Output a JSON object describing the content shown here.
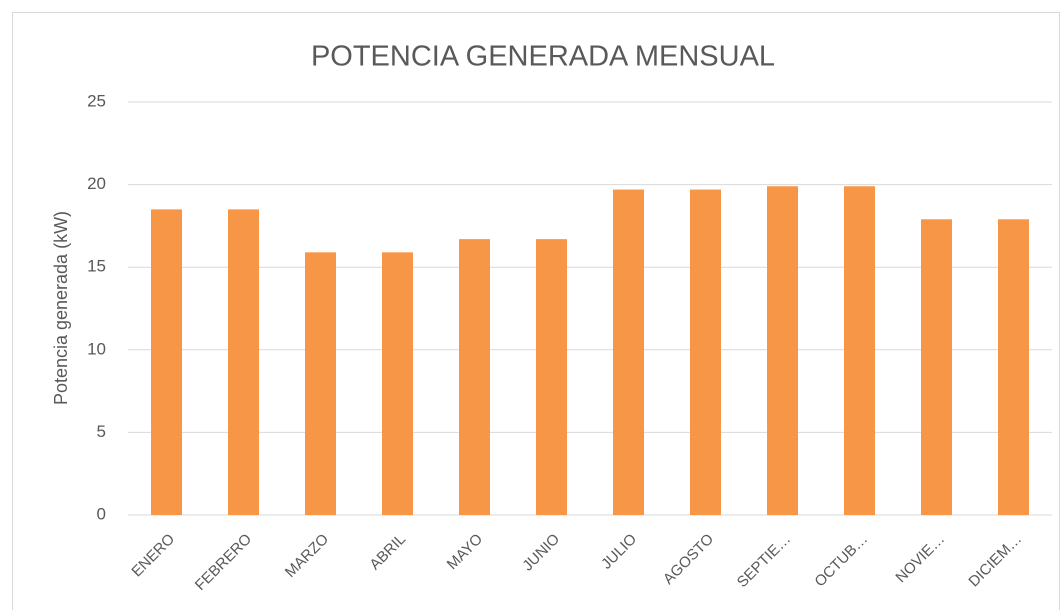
{
  "chart_data": {
    "type": "bar",
    "title": "POTENCIA GENERADA MENSUAL",
    "y_label": "Potencia generada (kW)",
    "categories": [
      "ENERO",
      "FEBRERO",
      "MARZO",
      "ABRIL",
      "MAYO",
      "JUNIO",
      "JULIO",
      "AGOSTO",
      "SEPTIE…",
      "OCTUB…",
      "NOVIE…",
      "DICIEM…"
    ],
    "values": [
      18.5,
      18.5,
      15.9,
      15.9,
      16.7,
      16.7,
      19.7,
      19.7,
      19.9,
      19.9,
      17.9,
      17.9
    ],
    "color": "#f79646",
    "ylim": [
      0,
      25
    ],
    "yticks": [
      0,
      5,
      10,
      15,
      20,
      25
    ],
    "grid": true
  }
}
